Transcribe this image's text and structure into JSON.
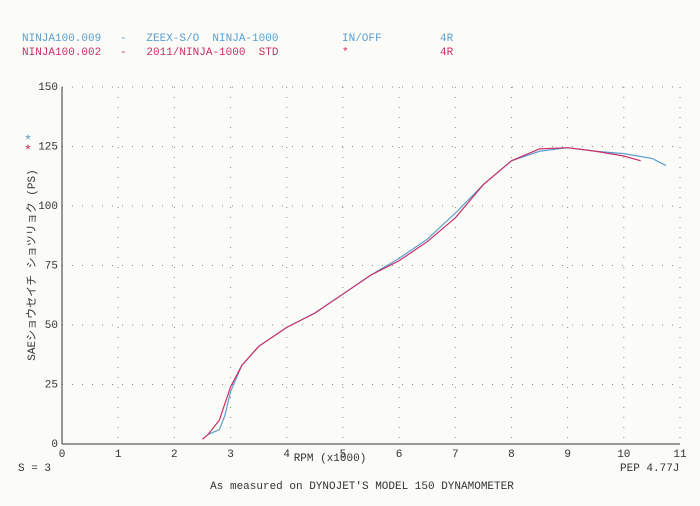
{
  "chart_data": {
    "type": "line",
    "x_label": "RPM (x1000)",
    "y_label": "SAEショウセイチ ショツリョク (PS)",
    "footer_left": "S = 3",
    "footer_right": "PEP 4.77J",
    "footnote": "As measured on DYNOJET'S MODEL 150 DYNAMOMETER",
    "xlim": [
      0,
      11
    ],
    "xticks": [
      0,
      1,
      2,
      3,
      4,
      5,
      6,
      7,
      8,
      9,
      10,
      11
    ],
    "ylim": [
      0,
      150
    ],
    "yticks": [
      0,
      25,
      50,
      75,
      100,
      125,
      150
    ],
    "grid": true,
    "series": [
      {
        "name": "NINJA100.009",
        "note": "-   ZEEX-S/O  NINJA-1000",
        "mode": "IN/OFF",
        "gear": "4R",
        "marker": "*",
        "color": "#5a9fd0",
        "x": [
          2.6,
          2.7,
          2.8,
          2.9,
          3.0,
          3.2,
          3.5,
          4.0,
          4.5,
          5.0,
          5.5,
          6.0,
          6.5,
          7.0,
          7.5,
          8.0,
          8.5,
          9.0,
          9.5,
          10.0,
          10.5,
          10.75
        ],
        "values": [
          4,
          5,
          6,
          12,
          22,
          33,
          41,
          49,
          55,
          63,
          71,
          78,
          86,
          97,
          109,
          119,
          123,
          124.5,
          123,
          122,
          120,
          117
        ]
      },
      {
        "name": "NINJA100.002",
        "note": "-   2011/NINJA-1000  STD",
        "mode": "*",
        "gear": "4R",
        "marker": "*",
        "color": "#c8306a",
        "x": [
          2.5,
          2.6,
          2.8,
          3.0,
          3.2,
          3.5,
          4.0,
          4.5,
          5.0,
          5.5,
          6.0,
          6.5,
          7.0,
          7.5,
          8.0,
          8.5,
          9.0,
          9.5,
          10.0,
          10.3
        ],
        "values": [
          2,
          4,
          10,
          24,
          33,
          41,
          49,
          55,
          63,
          71,
          77,
          85,
          95,
          109,
          119,
          124,
          124.5,
          123,
          121,
          119
        ]
      }
    ]
  }
}
